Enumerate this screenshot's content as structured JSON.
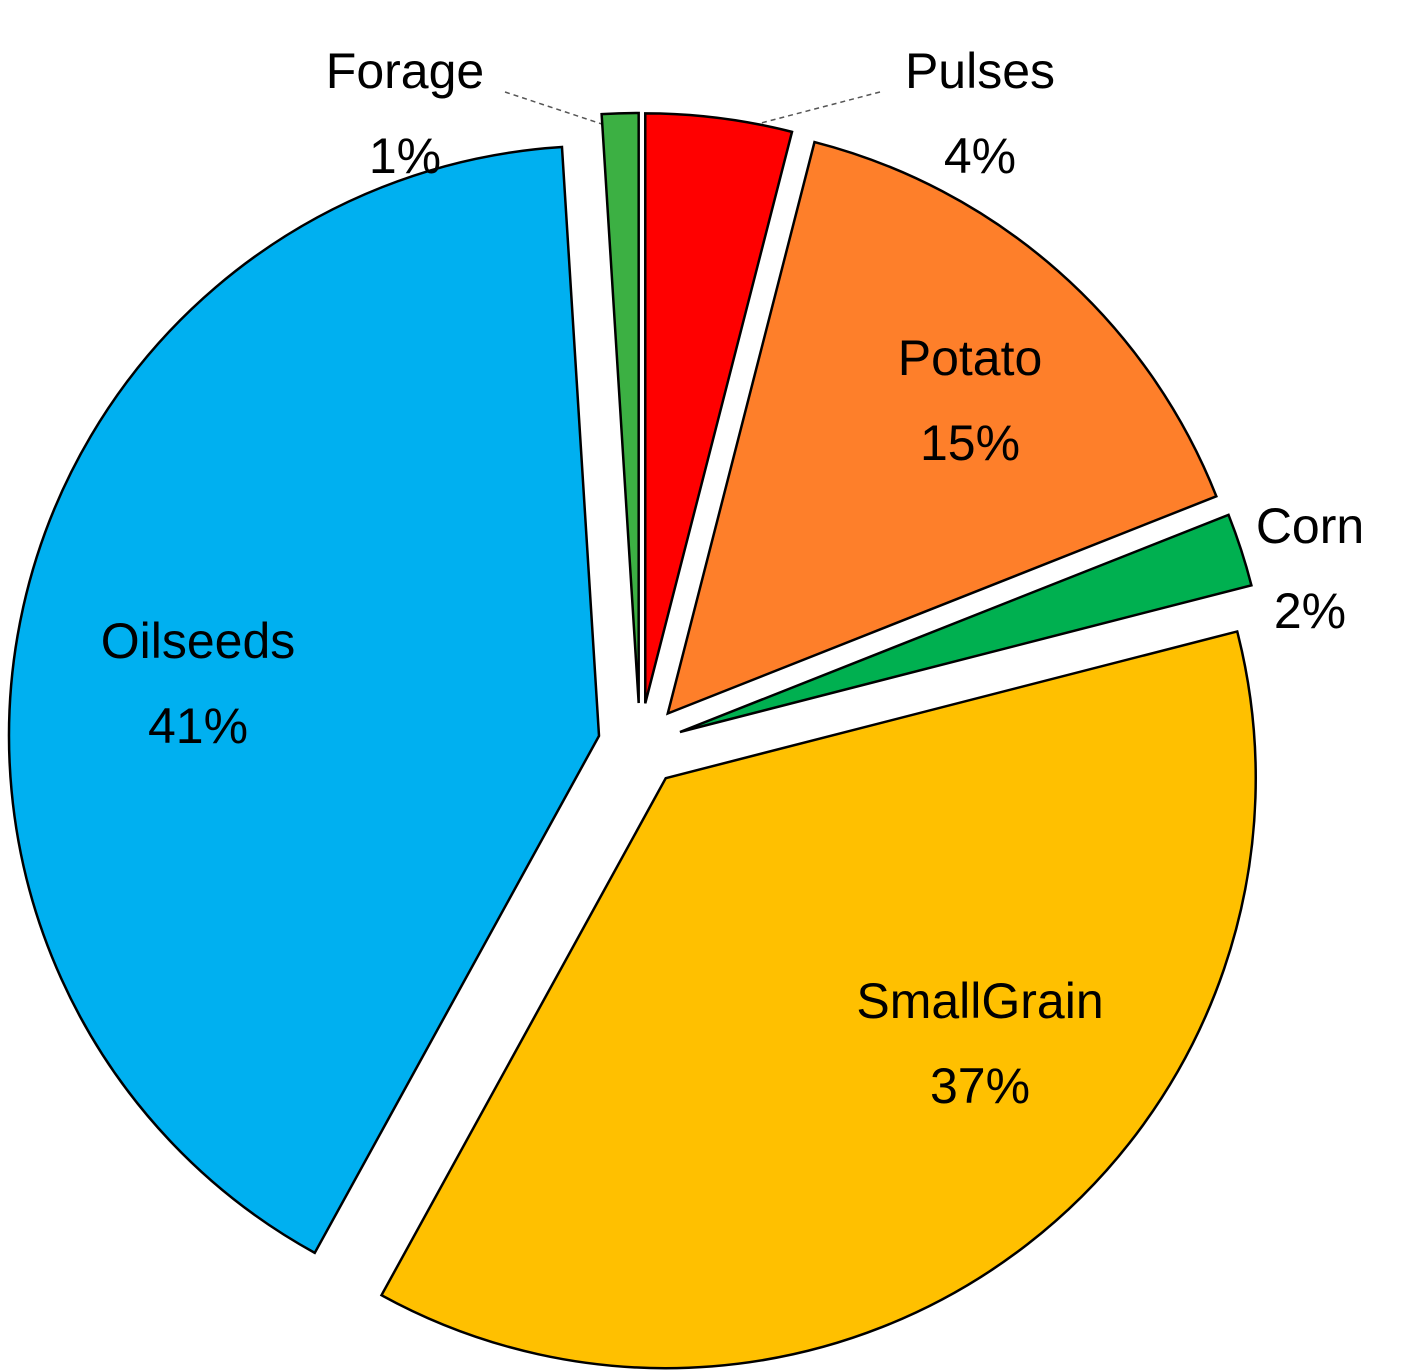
{
  "chart_data": {
    "type": "pie",
    "categories": [
      "Pulses",
      "Potato",
      "Corn",
      "SmallGrain",
      "Oilseeds",
      "Forage"
    ],
    "values": [
      4,
      15,
      2,
      37,
      41,
      1
    ],
    "value_labels": [
      "4%",
      "15%",
      "2%",
      "37%",
      "41%",
      "1%"
    ],
    "colors": [
      "#ff0000",
      "#fe7f2a",
      "#00b050",
      "#ffc000",
      "#00b0f0",
      "#3cb043"
    ]
  }
}
